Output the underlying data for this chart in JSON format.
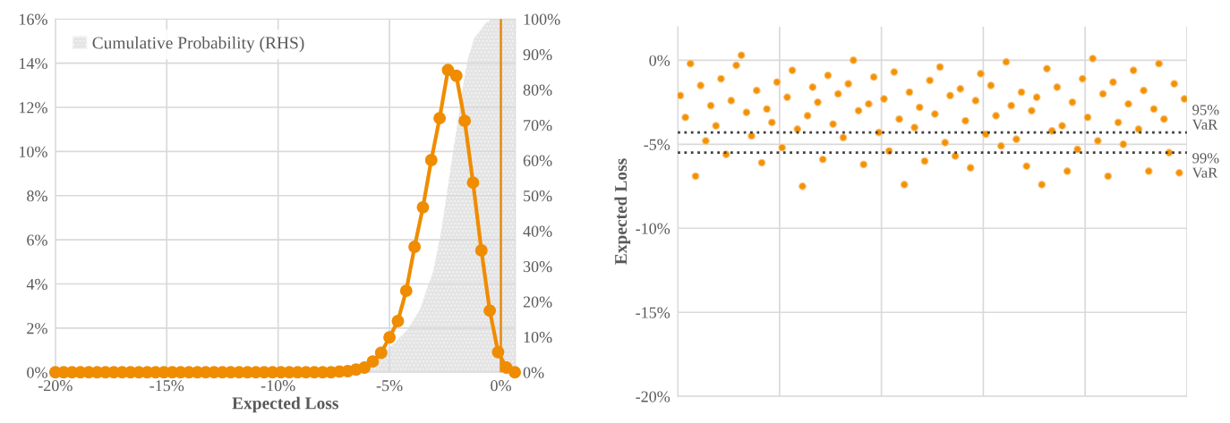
{
  "chart_data": [
    {
      "type": "line",
      "xlabel": "Expected Loss",
      "xlim": [
        -20,
        0.65
      ],
      "xticks": [
        {
          "value": -20,
          "label": "-20%"
        },
        {
          "value": -15,
          "label": "-15%"
        },
        {
          "value": -10,
          "label": "-10%"
        },
        {
          "value": -5,
          "label": "-5%"
        },
        {
          "value": 0,
          "label": "0%"
        }
      ],
      "ylim": [
        0,
        16
      ],
      "yticks": [
        {
          "value": 0,
          "label": "0%"
        },
        {
          "value": 2,
          "label": "2%"
        },
        {
          "value": 4,
          "label": "4%"
        },
        {
          "value": 6,
          "label": "6%"
        },
        {
          "value": 8,
          "label": "8%"
        },
        {
          "value": 10,
          "label": "10%"
        },
        {
          "value": 12,
          "label": "12%"
        },
        {
          "value": 14,
          "label": "14%"
        },
        {
          "value": 16,
          "label": "16%"
        }
      ],
      "y2lim": [
        0,
        100
      ],
      "y2ticks": [
        {
          "value": 0,
          "label": "0%"
        },
        {
          "value": 10,
          "label": "10%"
        },
        {
          "value": 20,
          "label": "20%"
        },
        {
          "value": 30,
          "label": "30%"
        },
        {
          "value": 40,
          "label": "40%"
        },
        {
          "value": 50,
          "label": "50%"
        },
        {
          "value": 60,
          "label": "60%"
        },
        {
          "value": 70,
          "label": "70%"
        },
        {
          "value": 80,
          "label": "80%"
        },
        {
          "value": 90,
          "label": "90%"
        },
        {
          "value": 100,
          "label": "100%"
        }
      ],
      "grid": true,
      "legend": "top left",
      "ref_lines": [
        {
          "axis": "x",
          "value": 0,
          "color": "#e8890c"
        }
      ],
      "series": [
        {
          "type": "area",
          "name": "Cumulative Probability (RHS)",
          "axis": "y2",
          "color": "#e4e4e4",
          "x": [
            -7,
            -6,
            -5.05,
            -4.2,
            -3.65,
            -3.04,
            -2.69,
            -2.43,
            -2.17,
            -1.9,
            -1.64,
            -1.47,
            -1.2,
            -0.68,
            -0.42,
            0.65
          ],
          "values": [
            0,
            0.5,
            6.6,
            12,
            17.6,
            28.6,
            39.6,
            50.5,
            61.5,
            72.5,
            83.5,
            89,
            94.5,
            98.9,
            100,
            100
          ]
        },
        {
          "type": "line",
          "color": "#f08c00",
          "marker": "circle",
          "x": [
            -20,
            -19.625,
            -19.25,
            -18.875,
            -18.5,
            -18.125,
            -17.75,
            -17.375,
            -17,
            -16.625,
            -16.25,
            -15.875,
            -15.5,
            -15.125,
            -14.75,
            -14.375,
            -14,
            -13.625,
            -13.25,
            -12.875,
            -12.5,
            -12.125,
            -11.75,
            -11.375,
            -11,
            -10.625,
            -10.25,
            -9.875,
            -9.5,
            -9.125,
            -8.75,
            -8.375,
            -8,
            -7.625,
            -7.25,
            -6.875,
            -6.5,
            -6.125,
            -5.75,
            -5.375,
            -5,
            -4.625,
            -4.25,
            -3.875,
            -3.5,
            -3.125,
            -2.75,
            -2.375,
            -2,
            -1.625,
            -1.25,
            -0.875,
            -0.5,
            -0.125,
            0.25,
            0.625
          ],
          "values": [
            0,
            0,
            0,
            0,
            0,
            0,
            0,
            0,
            0,
            0,
            0,
            0,
            0,
            0,
            0,
            0,
            0,
            0,
            0,
            0,
            0,
            0,
            0,
            0,
            0,
            0,
            0,
            0,
            0,
            0,
            0,
            0,
            0,
            0,
            0.03,
            0.05,
            0.12,
            0.21,
            0.49,
            0.88,
            1.58,
            2.32,
            3.69,
            5.68,
            7.47,
            9.61,
            11.51,
            13.69,
            13.43,
            11.39,
            8.59,
            5.52,
            2.79,
            0.91,
            0.21,
            0
          ]
        }
      ]
    },
    {
      "type": "scatter",
      "ylabel": "Expected Loss",
      "ylim": [
        -20,
        2
      ],
      "yticks": [
        {
          "value": -20,
          "label": "-20%"
        },
        {
          "value": -15,
          "label": "-15%"
        },
        {
          "value": -10,
          "label": "-10%"
        },
        {
          "value": -5,
          "label": "-5%"
        },
        {
          "value": 0,
          "label": "0%"
        }
      ],
      "grid": true,
      "tick_labels": "y",
      "marker": "circle",
      "color": "#f39200",
      "ref_lines": [
        {
          "axis": "y",
          "value": -4.3,
          "label": "95%\nVaR",
          "color": "#404040",
          "line_style": "dotted"
        },
        {
          "axis": "y",
          "value": -5.5,
          "label": "99%\nVaR",
          "color": "#404040",
          "line_style": "dotted"
        }
      ],
      "categories": [
        null,
        null,
        null,
        null,
        null,
        null,
        null,
        null,
        null,
        null,
        null,
        null,
        null,
        null,
        null,
        null,
        null,
        null,
        null,
        null,
        null,
        null,
        null,
        null,
        null,
        null,
        null,
        null,
        null,
        null,
        null,
        null,
        null,
        null,
        null,
        null,
        null,
        null,
        null,
        null,
        null,
        null,
        null,
        null,
        null,
        null,
        null,
        null,
        null,
        null,
        null,
        null,
        null,
        null,
        null,
        null,
        null,
        null,
        null,
        null,
        null,
        null,
        null,
        null,
        null,
        null,
        null,
        null,
        null,
        null,
        null,
        null,
        null,
        null,
        null,
        null,
        null,
        null,
        null,
        null,
        null,
        null,
        null,
        null,
        null,
        null,
        null,
        null,
        null,
        null,
        null,
        null,
        null,
        null,
        null,
        null,
        null,
        null,
        null,
        null
      ],
      "values": [
        -2.1,
        -3.4,
        -0.2,
        -6.9,
        -1.5,
        -4.8,
        -2.7,
        -3.9,
        -1.1,
        -5.6,
        -2.4,
        -0.3,
        0.3,
        -3.1,
        -4.5,
        -1.8,
        -6.1,
        -2.9,
        -3.7,
        -1.3,
        -5.2,
        -2.2,
        -0.6,
        -4.1,
        -7.5,
        -3.3,
        -1.6,
        -2.5,
        -5.9,
        -0.9,
        -3.8,
        -2.0,
        -4.6,
        -1.4,
        0.0,
        -3.0,
        -6.2,
        -2.6,
        -1.0,
        -4.3,
        -2.3,
        -5.4,
        -0.7,
        -3.5,
        -7.4,
        -1.9,
        -4.0,
        -2.8,
        -6.0,
        -1.2,
        -3.2,
        -0.4,
        -4.9,
        -2.1,
        -5.7,
        -1.7,
        -3.6,
        -6.4,
        -2.4,
        -0.8,
        -4.4,
        -1.5,
        -3.3,
        -5.1,
        -0.1,
        -2.7,
        -4.7,
        -1.9,
        -6.3,
        -3.0,
        -2.2,
        -7.4,
        -0.5,
        -4.2,
        -1.6,
        -3.9,
        -6.6,
        -2.5,
        -5.3,
        -1.1,
        -3.4,
        0.1,
        -4.8,
        -2.0,
        -6.9,
        -1.3,
        -3.7,
        -5.0,
        -2.6,
        -0.6,
        -4.1,
        -1.8,
        -6.6,
        -2.9,
        -0.2,
        -3.5,
        -5.5,
        -1.4,
        -6.7,
        -2.3
      ]
    }
  ]
}
